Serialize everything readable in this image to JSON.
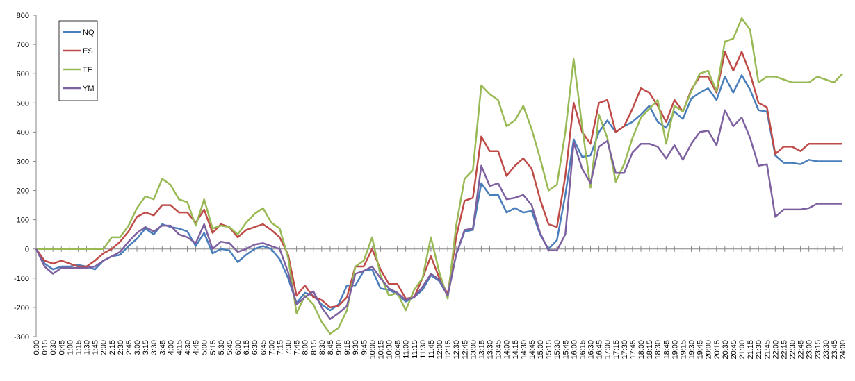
{
  "chart_data": {
    "type": "line",
    "categories": [
      "0:00",
      "0:15",
      "0:30",
      "0:45",
      "1:00",
      "1:15",
      "1:30",
      "1:45",
      "2:00",
      "2:15",
      "2:30",
      "2:45",
      "3:00",
      "3:15",
      "3:30",
      "3:45",
      "4:00",
      "4:15",
      "4:30",
      "4:45",
      "5:00",
      "5:15",
      "5:30",
      "5:45",
      "6:00",
      "6:15",
      "6:30",
      "6:45",
      "7:00",
      "7:15",
      "7:30",
      "7:45",
      "8:00",
      "8:15",
      "8:30",
      "8:45",
      "9:00",
      "9:15",
      "9:30",
      "9:45",
      "10:00",
      "10:15",
      "10:30",
      "10:45",
      "11:00",
      "11:15",
      "11:30",
      "11:45",
      "12:00",
      "12:15",
      "12:30",
      "12:45",
      "13:00",
      "13:15",
      "13:30",
      "13:45",
      "14:00",
      "14:15",
      "14:30",
      "14:45",
      "15:00",
      "15:15",
      "15:30",
      "15:45",
      "16:00",
      "16:15",
      "16:30",
      "16:45",
      "17:00",
      "17:15",
      "17:30",
      "17:45",
      "18:00",
      "18:15",
      "18:30",
      "18:45",
      "19:00",
      "19:15",
      "19:30",
      "19:45",
      "20:00",
      "20:15",
      "20:30",
      "20:45",
      "21:00",
      "21:15",
      "21:30",
      "21:45",
      "22:00",
      "22:15",
      "22:30",
      "22:45",
      "23:00",
      "23:15",
      "23:30",
      "23:45",
      "24:00"
    ],
    "series": [
      {
        "name": "NQ",
        "color": "#4a7ebb",
        "values": [
          0,
          -50,
          -70,
          -60,
          -60,
          -55,
          -60,
          -70,
          -40,
          -25,
          -20,
          10,
          35,
          70,
          50,
          85,
          75,
          70,
          60,
          10,
          55,
          -15,
          0,
          -5,
          -45,
          -20,
          0,
          10,
          0,
          -35,
          -100,
          -185,
          -150,
          -160,
          -190,
          -210,
          -190,
          -125,
          -125,
          -75,
          -70,
          -135,
          -140,
          -155,
          -180,
          -165,
          -140,
          -90,
          -110,
          -160,
          -20,
          60,
          65,
          225,
          185,
          185,
          125,
          140,
          125,
          130,
          50,
          0,
          30,
          185,
          375,
          315,
          320,
          400,
          440,
          400,
          420,
          435,
          460,
          490,
          435,
          415,
          470,
          445,
          515,
          535,
          550,
          510,
          590,
          535,
          595,
          545,
          475,
          470,
          320,
          295,
          295,
          290,
          305,
          300,
          300,
          300,
          300
        ]
      },
      {
        "name": "ES",
        "color": "#be4b48",
        "values": [
          0,
          -40,
          -50,
          -40,
          -50,
          -60,
          -60,
          -40,
          -15,
          0,
          25,
          60,
          110,
          125,
          115,
          150,
          150,
          125,
          125,
          90,
          135,
          55,
          85,
          75,
          40,
          65,
          75,
          85,
          65,
          40,
          -20,
          -160,
          -125,
          -165,
          -175,
          -200,
          -195,
          -165,
          -60,
          -60,
          0,
          -70,
          -120,
          -120,
          -170,
          -165,
          -100,
          -25,
          -100,
          -155,
          40,
          165,
          175,
          385,
          335,
          335,
          250,
          285,
          310,
          275,
          170,
          85,
          75,
          250,
          500,
          400,
          360,
          500,
          510,
          400,
          420,
          480,
          550,
          535,
          490,
          435,
          510,
          470,
          545,
          590,
          590,
          535,
          675,
          610,
          675,
          600,
          500,
          485,
          325,
          350,
          350,
          335,
          360,
          360,
          360,
          360,
          360
        ]
      },
      {
        "name": "TF",
        "color": "#98b954",
        "values": [
          0,
          0,
          0,
          0,
          0,
          0,
          0,
          0,
          0,
          40,
          40,
          80,
          140,
          180,
          170,
          240,
          220,
          170,
          160,
          80,
          170,
          70,
          80,
          75,
          50,
          90,
          120,
          140,
          90,
          70,
          -30,
          -220,
          -160,
          -190,
          -250,
          -290,
          -270,
          -210,
          -60,
          -40,
          40,
          -90,
          -160,
          -150,
          -210,
          -140,
          -100,
          40,
          -80,
          -170,
          80,
          240,
          270,
          560,
          530,
          510,
          420,
          440,
          490,
          410,
          310,
          200,
          220,
          400,
          650,
          420,
          210,
          460,
          380,
          230,
          290,
          380,
          450,
          480,
          510,
          360,
          490,
          470,
          540,
          600,
          610,
          540,
          710,
          720,
          790,
          750,
          570,
          590,
          590,
          580,
          570,
          570,
          570,
          590,
          580,
          570,
          600
        ]
      },
      {
        "name": "YM",
        "color": "#7d60a0",
        "values": [
          0,
          -60,
          -85,
          -65,
          -65,
          -65,
          -65,
          -60,
          -40,
          -25,
          -10,
          25,
          55,
          75,
          60,
          80,
          80,
          50,
          40,
          20,
          85,
          0,
          25,
          20,
          -10,
          0,
          15,
          20,
          10,
          0,
          -80,
          -190,
          -165,
          -145,
          -200,
          -240,
          -220,
          -195,
          -85,
          -75,
          -60,
          -100,
          -135,
          -150,
          -175,
          -165,
          -130,
          -85,
          -105,
          -160,
          -20,
          65,
          70,
          285,
          215,
          225,
          170,
          175,
          185,
          150,
          55,
          -5,
          -5,
          50,
          365,
          275,
          225,
          350,
          370,
          260,
          260,
          330,
          360,
          360,
          350,
          310,
          355,
          305,
          360,
          400,
          405,
          355,
          475,
          420,
          450,
          380,
          285,
          290,
          110,
          135,
          135,
          135,
          140,
          155,
          155,
          155,
          155
        ]
      }
    ],
    "ylim": [
      -300,
      800
    ],
    "yticks": [
      -300,
      -200,
      -100,
      0,
      100,
      200,
      300,
      400,
      500,
      600,
      700,
      800
    ],
    "grid": false,
    "legend": "top-left"
  }
}
